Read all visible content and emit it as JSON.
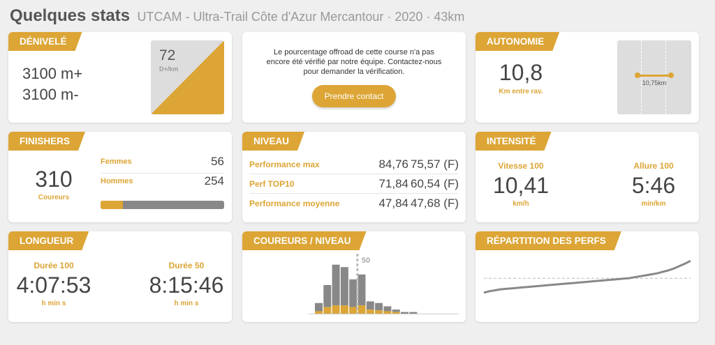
{
  "header": {
    "title": "Quelques stats",
    "subtitle": "UTCAM - Ultra-Trail Côte d'Azur Mercantour · 2020 · 43km"
  },
  "colors": {
    "accent": "#dca535",
    "grey": "#888888",
    "panel": "#dddddd"
  },
  "denivele": {
    "tag": "DÉNIVELÉ",
    "plus": "3100 m+",
    "minus": "3100 m-",
    "badge_value": "72",
    "badge_unit": "D+/km"
  },
  "offroad": {
    "message": "Le pourcentage offroad de cette course n'a pas encore été vérifié par notre équipe. Contactez-nous pour demander la vérification.",
    "button": "Prendre contact"
  },
  "autonomie": {
    "tag": "AUTONOMIE",
    "value": "10,8",
    "label": "Km entre rav.",
    "scale_label": "10,75km"
  },
  "finishers": {
    "tag": "FINISHERS",
    "total": "310",
    "total_label": "Coureurs",
    "women_label": "Femmes",
    "women": "56",
    "men_label": "Hommes",
    "men": "254",
    "women_fraction": 0.18
  },
  "niveau": {
    "tag": "NIVEAU",
    "rows": [
      {
        "label": "Performance max",
        "v1": "84,76",
        "v2": "75,57 (F)"
      },
      {
        "label": "Perf TOP10",
        "v1": "71,84",
        "v2": "60,54 (F)"
      },
      {
        "label": "Performance moyenne",
        "v1": "47,84",
        "v2": "47,68 (F)"
      }
    ]
  },
  "intensite": {
    "tag": "INTENSITÉ",
    "speed_label": "Vitesse 100",
    "speed": "10,41",
    "speed_unit": "km/h",
    "pace_label": "Allure 100",
    "pace": "5:46",
    "pace_unit": "min/km"
  },
  "longueur": {
    "tag": "LONGUEUR",
    "d100_label": "Durée 100",
    "d100": "4:07:53",
    "d100_unit": "h min s",
    "d50_label": "Durée 50",
    "d50": "8:15:46",
    "d50_unit": "h min s"
  },
  "coureurs_niveau": {
    "tag": "COUREURS / NIVEAU",
    "marker_label": "50",
    "marker_bin": 5,
    "bins": [
      {
        "total": 13,
        "women": 3
      },
      {
        "total": 35,
        "women": 8
      },
      {
        "total": 60,
        "women": 10
      },
      {
        "total": 57,
        "women": 10
      },
      {
        "total": 42,
        "women": 8
      },
      {
        "total": 48,
        "women": 10
      },
      {
        "total": 15,
        "women": 5
      },
      {
        "total": 13,
        "women": 4
      },
      {
        "total": 9,
        "women": 3
      },
      {
        "total": 5,
        "women": 2
      },
      {
        "total": 2,
        "women": 0
      },
      {
        "total": 2,
        "women": 0
      }
    ],
    "ymax": 70
  },
  "repartition": {
    "tag": "RÉPARTITION DES PERFS",
    "mean_value": 47.84,
    "min": 15,
    "max": 90,
    "perfs": [
      18,
      21,
      23,
      25,
      26,
      27,
      28,
      29,
      30,
      31,
      32,
      33,
      34,
      35,
      36,
      37,
      38,
      39,
      40,
      41,
      42,
      43,
      44,
      45,
      46,
      47,
      48,
      50,
      52,
      54,
      56,
      58,
      61,
      64,
      68,
      73,
      78,
      84
    ]
  }
}
